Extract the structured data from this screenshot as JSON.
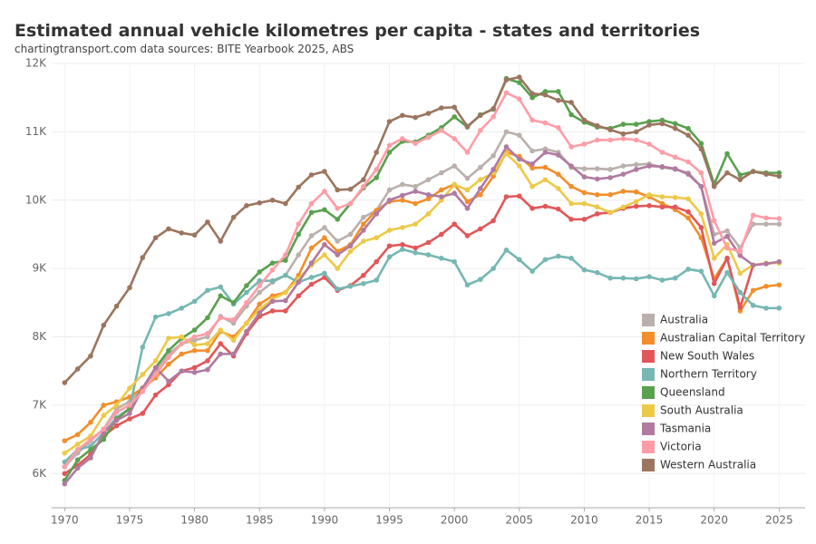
{
  "chart_data": {
    "type": "line",
    "title": "Estimated annual vehicle kilometres per capita - states and territories",
    "subtitle": "chartingtransport.com  data sources: BITE Yearbook 2025, ABS",
    "x": [
      1970,
      1971,
      1972,
      1973,
      1974,
      1975,
      1976,
      1977,
      1978,
      1979,
      1980,
      1981,
      1982,
      1983,
      1984,
      1985,
      1986,
      1987,
      1988,
      1989,
      1990,
      1991,
      1992,
      1993,
      1994,
      1995,
      1996,
      1997,
      1998,
      1999,
      2000,
      2001,
      2002,
      2003,
      2004,
      2005,
      2006,
      2007,
      2008,
      2009,
      2010,
      2011,
      2012,
      2013,
      2014,
      2015,
      2016,
      2017,
      2018,
      2019,
      2020,
      2021,
      2022,
      2023,
      2024,
      2025
    ],
    "xlim": [
      1969,
      2027
    ],
    "xticks": [
      1970,
      1975,
      1980,
      1985,
      1990,
      1995,
      2000,
      2005,
      2010,
      2015,
      2020,
      2025
    ],
    "ylim": [
      5500,
      12000
    ],
    "yticks": [
      {
        "value": 6000,
        "label": "6K"
      },
      {
        "value": 7000,
        "label": "7K"
      },
      {
        "value": 8000,
        "label": "8K"
      },
      {
        "value": 9000,
        "label": "9K"
      },
      {
        "value": 10000,
        "label": "10K"
      },
      {
        "value": 11000,
        "label": "11K"
      },
      {
        "value": 12000,
        "label": "12K"
      }
    ],
    "grid": true,
    "legend": "bottom-right",
    "series": [
      {
        "name": "Australia",
        "color": "#bab0ac",
        "values": [
          6100,
          6300,
          6480,
          6650,
          6950,
          7050,
          7250,
          7500,
          7750,
          7900,
          7950,
          8000,
          8300,
          8200,
          8450,
          8650,
          8800,
          8900,
          9200,
          9480,
          9600,
          9400,
          9500,
          9750,
          9850,
          10150,
          10230,
          10200,
          10300,
          10400,
          10500,
          10320,
          10480,
          10650,
          11000,
          10950,
          10720,
          10750,
          10700,
          10480,
          10460,
          10460,
          10450,
          10500,
          10520,
          10530,
          10480,
          10450,
          10400,
          10200,
          9500,
          9550,
          9300,
          9650,
          9650,
          9650
        ]
      },
      {
        "name": "Australian Capital Territory",
        "color": "#f28e2b",
        "values": [
          6480,
          6570,
          6750,
          7000,
          7050,
          7120,
          7250,
          7400,
          7600,
          7750,
          7800,
          7800,
          8080,
          8000,
          8200,
          8480,
          8600,
          8650,
          8900,
          9300,
          9450,
          9250,
          9350,
          9650,
          9850,
          9980,
          10000,
          9950,
          10020,
          10150,
          10230,
          9980,
          10080,
          10350,
          10700,
          10640,
          10470,
          10480,
          10380,
          10200,
          10110,
          10080,
          10080,
          10130,
          10120,
          10050,
          9950,
          9860,
          9740,
          9450,
          8850,
          9150,
          8380,
          8680,
          8740,
          8760
        ]
      },
      {
        "name": "New South Wales",
        "color": "#e15759",
        "values": [
          6000,
          6120,
          6280,
          6550,
          6700,
          6800,
          6880,
          7150,
          7300,
          7500,
          7550,
          7650,
          7900,
          7720,
          8050,
          8300,
          8380,
          8380,
          8600,
          8770,
          8870,
          8680,
          8750,
          8900,
          9100,
          9330,
          9350,
          9300,
          9380,
          9500,
          9650,
          9480,
          9580,
          9700,
          10050,
          10060,
          9880,
          9910,
          9870,
          9720,
          9720,
          9800,
          9820,
          9880,
          9910,
          9920,
          9900,
          9900,
          9830,
          9600,
          8780,
          9150,
          8430,
          9050,
          9070,
          9090
        ]
      },
      {
        "name": "Northern Territory",
        "color": "#76b7b2",
        "values": [
          6170,
          6350,
          6400,
          6600,
          6820,
          6950,
          7850,
          8290,
          8340,
          8420,
          8520,
          8680,
          8730,
          8480,
          8650,
          8820,
          8820,
          8900,
          8800,
          8870,
          8930,
          8700,
          8740,
          8780,
          8830,
          9170,
          9280,
          9230,
          9200,
          9150,
          9100,
          8760,
          8840,
          9000,
          9270,
          9130,
          8960,
          9130,
          9180,
          9150,
          8980,
          8940,
          8860,
          8860,
          8850,
          8880,
          8830,
          8860,
          8990,
          8960,
          8600,
          8940,
          8650,
          8460,
          8420,
          8420
        ]
      },
      {
        "name": "Queensland",
        "color": "#59a14f",
        "values": [
          5900,
          6200,
          6350,
          6500,
          6800,
          6950,
          7250,
          7550,
          7800,
          7980,
          8100,
          8280,
          8600,
          8500,
          8750,
          8950,
          9080,
          9120,
          9500,
          9820,
          9860,
          9720,
          9950,
          10180,
          10330,
          10700,
          10860,
          10850,
          10950,
          11060,
          11220,
          11070,
          11250,
          11330,
          11780,
          11720,
          11500,
          11590,
          11590,
          11250,
          11140,
          11070,
          11050,
          11110,
          11110,
          11150,
          11170,
          11120,
          11050,
          10830,
          10230,
          10680,
          10370,
          10420,
          10400,
          10400
        ]
      },
      {
        "name": "South Australia",
        "color": "#edc948",
        "values": [
          6300,
          6430,
          6550,
          6850,
          7000,
          7250,
          7450,
          7650,
          7980,
          8000,
          7880,
          7900,
          8100,
          7950,
          8200,
          8400,
          8550,
          8650,
          8850,
          9050,
          9200,
          9000,
          9250,
          9400,
          9450,
          9560,
          9600,
          9650,
          9800,
          10000,
          10230,
          10150,
          10300,
          10400,
          10680,
          10500,
          10200,
          10300,
          10170,
          9950,
          9950,
          9900,
          9820,
          9900,
          9980,
          10080,
          10050,
          10040,
          10020,
          9800,
          9150,
          9350,
          8930,
          9050,
          9080,
          9080
        ]
      },
      {
        "name": "Tasmania",
        "color": "#b07aa1",
        "values": [
          5850,
          6080,
          6230,
          6600,
          6780,
          6880,
          7250,
          7550,
          7350,
          7500,
          7480,
          7520,
          7750,
          7750,
          8080,
          8350,
          8520,
          8530,
          8800,
          9080,
          9350,
          9200,
          9330,
          9560,
          9800,
          10000,
          10070,
          10130,
          10080,
          10050,
          10100,
          9880,
          10170,
          10450,
          10780,
          10600,
          10530,
          10700,
          10660,
          10500,
          10340,
          10310,
          10330,
          10380,
          10450,
          10500,
          10490,
          10460,
          10380,
          10200,
          9370,
          9470,
          9190,
          9050,
          9070,
          9100
        ]
      },
      {
        "name": "Victoria",
        "color": "#ff9da7",
        "values": [
          6100,
          6350,
          6500,
          6650,
          6900,
          7000,
          7200,
          7450,
          7700,
          7900,
          8000,
          8050,
          8280,
          8250,
          8500,
          8750,
          8980,
          9200,
          9650,
          9950,
          10130,
          9880,
          9950,
          10200,
          10450,
          10800,
          10900,
          10830,
          10920,
          11020,
          10900,
          10700,
          11020,
          11220,
          11570,
          11480,
          11170,
          11130,
          11060,
          10780,
          10820,
          10880,
          10880,
          10900,
          10880,
          10820,
          10700,
          10630,
          10560,
          10400,
          9700,
          9300,
          9250,
          9780,
          9740,
          9730
        ]
      },
      {
        "name": "Western Australia",
        "color": "#9c755f",
        "values": [
          7330,
          7530,
          7720,
          8170,
          8450,
          8720,
          9160,
          9450,
          9580,
          9520,
          9490,
          9680,
          9400,
          9750,
          9920,
          9960,
          10000,
          9950,
          10190,
          10370,
          10420,
          10150,
          10160,
          10300,
          10700,
          11150,
          11240,
          11210,
          11270,
          11350,
          11360,
          11080,
          11240,
          11340,
          11760,
          11800,
          11560,
          11540,
          11460,
          11430,
          11170,
          11090,
          11030,
          10970,
          11000,
          11100,
          11120,
          11050,
          10950,
          10750,
          10200,
          10400,
          10300,
          10420,
          10380,
          10350
        ]
      }
    ]
  }
}
